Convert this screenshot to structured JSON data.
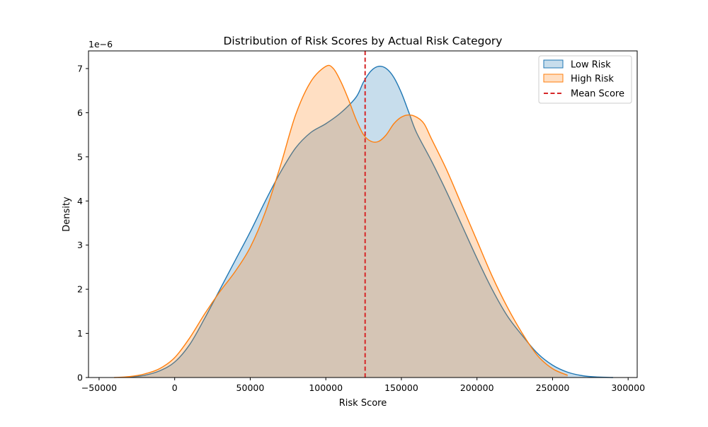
{
  "chart_data": {
    "type": "area",
    "title": "Distribution of Risk Scores by Actual Risk Category",
    "xlabel": "Risk Score",
    "ylabel": "Density",
    "y_offset_label": "1e−6",
    "y_scale": 1e-06,
    "xlim": [
      -57000,
      306000
    ],
    "ylim": [
      0,
      7.4
    ],
    "x_ticks": [
      -50000,
      0,
      50000,
      100000,
      150000,
      200000,
      250000,
      300000
    ],
    "x_tick_labels": [
      "−50000",
      "0",
      "50000",
      "100000",
      "150000",
      "200000",
      "250000",
      "300000"
    ],
    "y_ticks": [
      0,
      1,
      2,
      3,
      4,
      5,
      6,
      7
    ],
    "y_tick_labels": [
      "0",
      "1",
      "2",
      "3",
      "4",
      "5",
      "6",
      "7"
    ],
    "grid": false,
    "legend": "top-right",
    "series": [
      {
        "name": "Low Risk",
        "color": "#1f77b4",
        "x": [
          -30000,
          -20000,
          -10000,
          0,
          10000,
          20000,
          30000,
          40000,
          50000,
          60000,
          70000,
          80000,
          90000,
          100000,
          110000,
          120000,
          125000,
          130000,
          135000,
          140000,
          145000,
          150000,
          155000,
          160000,
          170000,
          180000,
          190000,
          200000,
          210000,
          220000,
          230000,
          240000,
          250000,
          260000,
          270000,
          280000,
          290000
        ],
        "values": [
          0.01,
          0.05,
          0.15,
          0.35,
          0.75,
          1.35,
          2.0,
          2.65,
          3.3,
          4.0,
          4.65,
          5.2,
          5.55,
          5.75,
          6.0,
          6.35,
          6.7,
          6.95,
          7.05,
          7.0,
          6.8,
          6.45,
          6.0,
          5.55,
          4.9,
          4.2,
          3.45,
          2.7,
          2.0,
          1.4,
          0.95,
          0.55,
          0.28,
          0.12,
          0.04,
          0.01,
          0.0
        ]
      },
      {
        "name": "High Risk",
        "color": "#ff7f0e",
        "x": [
          -40000,
          -30000,
          -20000,
          -10000,
          0,
          10000,
          20000,
          30000,
          40000,
          50000,
          60000,
          70000,
          80000,
          90000,
          100000,
          105000,
          110000,
          115000,
          120000,
          125000,
          130000,
          135000,
          140000,
          145000,
          150000,
          155000,
          160000,
          165000,
          170000,
          180000,
          190000,
          200000,
          210000,
          220000,
          230000,
          240000,
          250000,
          260000
        ],
        "values": [
          0.0,
          0.02,
          0.08,
          0.2,
          0.45,
          0.9,
          1.45,
          1.95,
          2.4,
          2.95,
          3.75,
          4.8,
          5.95,
          6.7,
          7.05,
          7.0,
          6.7,
          6.3,
          5.85,
          5.5,
          5.35,
          5.35,
          5.5,
          5.75,
          5.9,
          5.95,
          5.9,
          5.75,
          5.4,
          4.7,
          3.9,
          3.1,
          2.3,
          1.6,
          1.0,
          0.5,
          0.2,
          0.05
        ]
      }
    ],
    "annotations": [
      {
        "type": "vline",
        "name": "Mean Score",
        "x": 126000,
        "color": "#d62728",
        "style": "dashed"
      }
    ]
  }
}
